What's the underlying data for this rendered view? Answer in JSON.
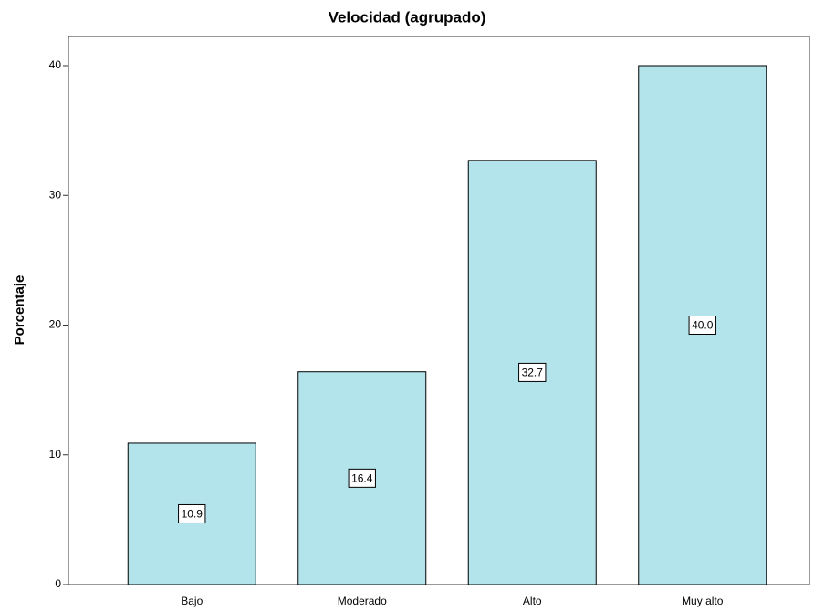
{
  "chart_data": {
    "type": "bar",
    "title": "Velocidad (agrupado)",
    "y_label": "Porcentaje",
    "categories": [
      "Bajo",
      "Moderado",
      "Alto",
      "Muy alto"
    ],
    "values": [
      10.9,
      16.4,
      32.7,
      40.0
    ],
    "value_labels": [
      "10.9",
      "16.4",
      "32.7",
      "40.0"
    ],
    "color": "#b3e4eb",
    "ylim": [
      0,
      42.25
    ],
    "yticks": [
      0,
      10,
      20,
      30,
      40
    ],
    "grid": false
  }
}
